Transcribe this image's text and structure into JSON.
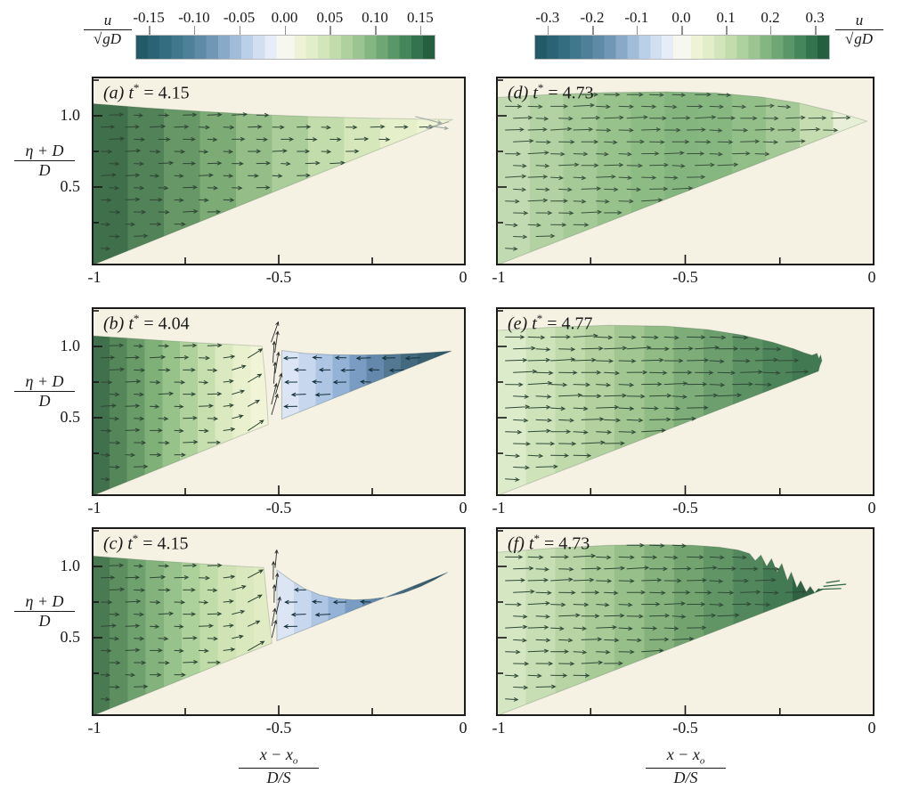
{
  "chart_data": {
    "type": "heatmap",
    "description": "Six snapshots (a-f) of horizontal velocity fields u/sqrt(gD) with velocity vectors during solitary wave drawdown and runup over a plane slope; color shading gives u/sqrt(gD), arrows give flow direction.",
    "style": {
      "panel_bg": "#f5f2e3",
      "panel_border": "#1b1b1b",
      "page_bg": "#ffffff"
    },
    "colorbar_left": {
      "label_num": "u",
      "root": "√",
      "den": "gD",
      "ticks": [
        "-0.15",
        "-0.10",
        "-0.05",
        "0.00",
        "0.05",
        "0.10",
        "0.15"
      ],
      "range": [
        -0.15,
        0.15
      ],
      "blue_bands": [
        "#235a68",
        "#2b6274",
        "#356d80",
        "#41778d",
        "#4f809a",
        "#5f8aa7",
        "#7197b6",
        "#88a9c7",
        "#a1bcd8",
        "#bad0e8",
        "#d2dff1",
        "#e7edf8"
      ],
      "center": "#f6f8f0",
      "green_bands": [
        "#eff3d6",
        "#e2eeca",
        "#d3e5ba",
        "#c2dcac",
        "#afd19d",
        "#9ac490",
        "#84b682",
        "#6ea774",
        "#599768",
        "#45865b",
        "#33744e",
        "#245f40"
      ]
    },
    "colorbar_right": {
      "label_num": "u",
      "root": "√",
      "den": "gD",
      "ticks": [
        "-0.3",
        "-0.2",
        "-0.1",
        "0.0",
        "0.1",
        "0.2",
        "0.3"
      ],
      "range": [
        -0.3,
        0.3
      ],
      "blue_bands": [
        "#235a68",
        "#2b6274",
        "#356d80",
        "#41778d",
        "#4f809a",
        "#5f8aa7",
        "#7197b6",
        "#88a9c7",
        "#a1bcd8",
        "#bad0e8",
        "#d2dff1",
        "#e7edf8"
      ],
      "center": "#f6f8f0",
      "green_bands": [
        "#eff3d6",
        "#e2eeca",
        "#d3e5ba",
        "#c2dcac",
        "#afd19d",
        "#9ac490",
        "#84b682",
        "#6ea774",
        "#599768",
        "#45865b",
        "#33744e",
        "#245f40"
      ]
    },
    "axes": {
      "x_ticks": [
        "-1",
        "-0.5",
        "0"
      ],
      "x_range": [
        -1,
        0
      ],
      "x_minor_ticks": [
        -0.75,
        -0.5,
        -0.25
      ],
      "y_ticks": [
        "1.0",
        "0.5"
      ],
      "y_minor_ticks": [
        0.25,
        0.5,
        0.75,
        1.0,
        1.25
      ],
      "ylabel_num": "η + D",
      "ylabel_den": "D",
      "xlabel_num": "x − x",
      "xlabel_sub": "o",
      "xlabel_den": "D/S"
    },
    "panels": [
      {
        "id": "a",
        "tag": "(a)",
        "t_sym": "t",
        "star": "*",
        "eq": "=",
        "t_value": "4.15",
        "flow": "onshore flow, u from ~0.15 at left to ~0 at shoreline tip",
        "grid": {
          "dx": 0.0655,
          "dy": 0.085
        },
        "regions": [
          {
            "name": "water-onshore",
            "dir": "right",
            "arrow": "#2e4734",
            "arrow_len": 13,
            "bands": [
              "#3f6f4b",
              "#528258",
              "#679766",
              "#7dab76",
              "#94bd88",
              "#abcd9a",
              "#c2dcab",
              "#d6e7bc",
              "#e5efca",
              "#eef3d4"
            ],
            "pts": [
              [
                -1,
                1.085
              ],
              [
                -0.85,
                1.055
              ],
              [
                -0.7,
                1.03
              ],
              [
                -0.55,
                1.008
              ],
              [
                -0.4,
                0.993
              ],
              [
                -0.25,
                0.983
              ],
              [
                -0.12,
                0.976
              ],
              [
                -0.035,
                0.973
              ],
              [
                -1,
                -0.05
              ]
            ]
          }
        ],
        "extra_arrows": [
          {
            "x": -0.135,
            "y": 0.995,
            "angle": -14,
            "len": 30,
            "color": "#9aa39f"
          },
          {
            "x": -0.045,
            "y": 0.958,
            "angle": 196,
            "len": 26,
            "color": "#9aa39f"
          },
          {
            "x": -0.1,
            "y": 0.93,
            "angle": -8,
            "len": 22,
            "color": "#9aa39f"
          }
        ]
      },
      {
        "id": "b",
        "tag": "(b)",
        "t_sym": "t",
        "star": "*",
        "eq": "=",
        "t_value": "4.04",
        "flow": "onshore flow offshore of x~-0.55, upward jet at front, offshore (negative u) drawdown tongue near shore",
        "grid": {
          "dx": 0.0655,
          "dy": 0.085
        },
        "front_fan": {
          "x": -0.514,
          "y0": 0.52,
          "y1": 1.03,
          "n": 8,
          "angle": 78,
          "len": 24,
          "color": "#2c2c2c"
        },
        "regions": [
          {
            "name": "water-onshore",
            "dir": "right",
            "arrow": "#2e4734",
            "arrow_len": 13,
            "front_tilt": {
              "x0": -0.68,
              "x1": -0.55,
              "max": 40
            },
            "bands": [
              "#41714c",
              "#548659",
              "#699b68",
              "#7fb078",
              "#97c28a",
              "#afd29c",
              "#c7dfae",
              "#dbe9c0",
              "#e9f0cd",
              "#f2f4d8"
            ],
            "pts": [
              [
                -1,
                1.075
              ],
              [
                -0.85,
                1.048
              ],
              [
                -0.7,
                1.024
              ],
              [
                -0.6,
                1.01
              ],
              [
                -0.545,
                1.002
              ],
              [
                -0.535,
                0.75
              ],
              [
                -0.528,
                0.452
              ],
              [
                -1,
                -0.05
              ]
            ]
          },
          {
            "name": "water-offshore-tongue",
            "dir": "left",
            "arrow": "#132f3c",
            "arrow_len": 13,
            "bands": [
              "#dbe5f4",
              "#c7d7ee",
              "#aec6e4",
              "#93b2d6",
              "#7a9cc2",
              "#6488ab",
              "#527892",
              "#43697e",
              "#385f70",
              "#2f5966"
            ],
            "pts": [
              [
                -0.492,
                0.972
              ],
              [
                -0.43,
                0.952
              ],
              [
                -0.36,
                0.942
              ],
              [
                -0.28,
                0.94
              ],
              [
                -0.2,
                0.944
              ],
              [
                -0.13,
                0.952
              ],
              [
                -0.07,
                0.962
              ],
              [
                -0.038,
                0.968
              ],
              [
                -0.492,
                0.49
              ]
            ]
          }
        ]
      },
      {
        "id": "c",
        "tag": "(c)",
        "t_sym": "t",
        "star": "*",
        "eq": "=",
        "t_value": "4.15",
        "flow": "onshore flow offshore of x~-0.55, concave drawdown trough with offshore flow near shore",
        "grid": {
          "dx": 0.0655,
          "dy": 0.085
        },
        "front_fan": {
          "x": -0.513,
          "y0": 0.5,
          "y1": 0.99,
          "n": 7,
          "angle": 81,
          "len": 20,
          "color": "#2c2c2c"
        },
        "regions": [
          {
            "name": "water-onshore",
            "dir": "right",
            "arrow": "#2e4734",
            "arrow_len": 13,
            "front_tilt": {
              "x0": -0.68,
              "x1": -0.55,
              "max": 35
            },
            "bands": [
              "#4a7a52",
              "#5c8e60",
              "#6fa16e",
              "#83b27c",
              "#98c28b",
              "#add19a",
              "#c0dca9",
              "#cfe3b4",
              "#dae8bd",
              "#e1ecc4"
            ],
            "pts": [
              [
                -1,
                1.073
              ],
              [
                -0.85,
                1.043
              ],
              [
                -0.7,
                1.017
              ],
              [
                -0.6,
                1.0
              ],
              [
                -0.54,
                0.992
              ],
              [
                -0.53,
                0.73
              ],
              [
                -0.518,
                0.462
              ],
              [
                -1,
                -0.05
              ]
            ]
          },
          {
            "name": "water-offshore-trough",
            "dir": "left",
            "arrow": "#132f3c",
            "arrow_len": 13,
            "bands": [
              "#dbe5f4",
              "#c7d7ee",
              "#aec6e4",
              "#93b2d6",
              "#7a9cc2",
              "#6488ab",
              "#527892",
              "#43697e",
              "#385f70",
              "#2f5966"
            ],
            "pts": [
              [
                -0.505,
                0.975
              ],
              [
                -0.468,
                0.905
              ],
              [
                -0.432,
                0.845
              ],
              [
                -0.39,
                0.8
              ],
              [
                -0.345,
                0.775
              ],
              [
                -0.3,
                0.765
              ],
              [
                -0.255,
                0.77
              ],
              [
                -0.21,
                0.785
              ],
              [
                -0.165,
                0.815
              ],
              [
                -0.12,
                0.86
              ],
              [
                -0.085,
                0.905
              ],
              [
                -0.048,
                0.959
              ],
              [
                -0.505,
                0.478
              ]
            ]
          }
        ]
      },
      {
        "id": "d",
        "tag": "(d)",
        "t_sym": "t",
        "star": "*",
        "eq": "=",
        "t_value": "4.73",
        "flow": "broad onshore surge, u up to ~0.3 under the crest",
        "grid": {
          "dx": 0.06,
          "dy": 0.083
        },
        "regions": [
          {
            "name": "water-surge",
            "dir": "right",
            "arrow": "#3a523d",
            "arrow_len": 18,
            "bands": [
              "#c2dab2",
              "#b3d2a3",
              "#a5ca97",
              "#98c28c",
              "#8cbb84",
              "#84b57e",
              "#87b780",
              "#92be88",
              "#a5c996",
              "#c5dcb0",
              "#e7f0d6"
            ],
            "pts": [
              [
                -1,
                1.128
              ],
              [
                -0.85,
                1.15
              ],
              [
                -0.7,
                1.163
              ],
              [
                -0.55,
                1.168
              ],
              [
                -0.42,
                1.16
              ],
              [
                -0.3,
                1.132
              ],
              [
                -0.2,
                1.09
              ],
              [
                -0.12,
                1.038
              ],
              [
                -0.06,
                0.995
              ],
              [
                -0.02,
                0.962
              ],
              [
                -1,
                -0.05
              ]
            ]
          }
        ]
      },
      {
        "id": "e",
        "tag": "(e)",
        "t_sym": "t",
        "star": "*",
        "eq": "=",
        "t_value": "4.77",
        "flow": "runup bore with rounded nose, strongest u (~0.3) at the front",
        "grid": {
          "dx": 0.06,
          "dy": 0.083
        },
        "regions": [
          {
            "name": "water-bore",
            "dir": "right",
            "arrow": "#2f4a37",
            "arrow_len": 21,
            "bands": [
              "#dcebca",
              "#cfe3bb",
              "#c1daac",
              "#b2d19e",
              "#a2c691",
              "#91bb85",
              "#7fad79",
              "#6d9f6e",
              "#5c9164",
              "#4d845a",
              "#417a52"
            ],
            "pts": [
              [
                -1,
                1.112
              ],
              [
                -0.85,
                1.135
              ],
              [
                -0.7,
                1.148
              ],
              [
                -0.55,
                1.142
              ],
              [
                -0.44,
                1.118
              ],
              [
                -0.35,
                1.08
              ],
              [
                -0.27,
                1.03
              ],
              [
                -0.215,
                0.985
              ],
              [
                -0.185,
                0.955
              ],
              [
                -0.165,
                0.938
              ],
              [
                -0.152,
                0.952
              ],
              [
                -0.147,
                0.915
              ],
              [
                -0.142,
                0.94
              ],
              [
                -0.139,
                0.9
              ],
              [
                -0.145,
                0.86
              ],
              [
                -0.148,
                0.826
              ],
              [
                -1,
                -0.05
              ]
            ]
          }
        ]
      },
      {
        "id": "f",
        "tag": "(f)",
        "t_sym": "t",
        "star": "*",
        "eq": "=",
        "t_value": "4.73",
        "flow": "breaking runup front with jagged dark-green spray at the tip",
        "grid": {
          "dx": 0.06,
          "dy": 0.083
        },
        "spray": [
          {
            "x1": -0.135,
            "y1": 0.86,
            "x2": -0.075,
            "y2": 0.875
          },
          {
            "x1": -0.142,
            "y1": 0.84,
            "x2": -0.088,
            "y2": 0.845
          },
          {
            "x1": -0.128,
            "y1": 0.885,
            "x2": -0.092,
            "y2": 0.9
          }
        ],
        "regions": [
          {
            "name": "water-breaking-bore",
            "dir": "right",
            "arrow": "#2f4a37",
            "arrow_len": 19,
            "bands": [
              "#d5e6c2",
              "#c7ddb3",
              "#b8d4a4",
              "#a8ca96",
              "#97bf89",
              "#85b27c",
              "#73a470",
              "#619566",
              "#52875d",
              "#437a53",
              "#2f6243"
            ],
            "pts": [
              [
                -1,
                1.098
              ],
              [
                -0.85,
                1.128
              ],
              [
                -0.7,
                1.148
              ],
              [
                -0.58,
                1.153
              ],
              [
                -0.48,
                1.148
              ],
              [
                -0.41,
                1.135
              ],
              [
                -0.36,
                1.115
              ],
              [
                -0.33,
                1.09
              ],
              [
                -0.315,
                1.04
              ],
              [
                -0.3,
                1.08
              ],
              [
                -0.285,
                1.0
              ],
              [
                -0.272,
                1.055
              ],
              [
                -0.258,
                0.96
              ],
              [
                -0.245,
                1.02
              ],
              [
                -0.23,
                0.9
              ],
              [
                -0.22,
                0.96
              ],
              [
                -0.205,
                0.85
              ],
              [
                -0.195,
                0.9
              ],
              [
                -0.18,
                0.82
              ],
              [
                -0.17,
                0.86
              ],
              [
                -0.158,
                0.815
              ],
              [
                -0.148,
                0.845
              ],
              [
                -0.138,
                0.835
              ],
              [
                -1,
                -0.05
              ]
            ]
          }
        ]
      }
    ]
  }
}
